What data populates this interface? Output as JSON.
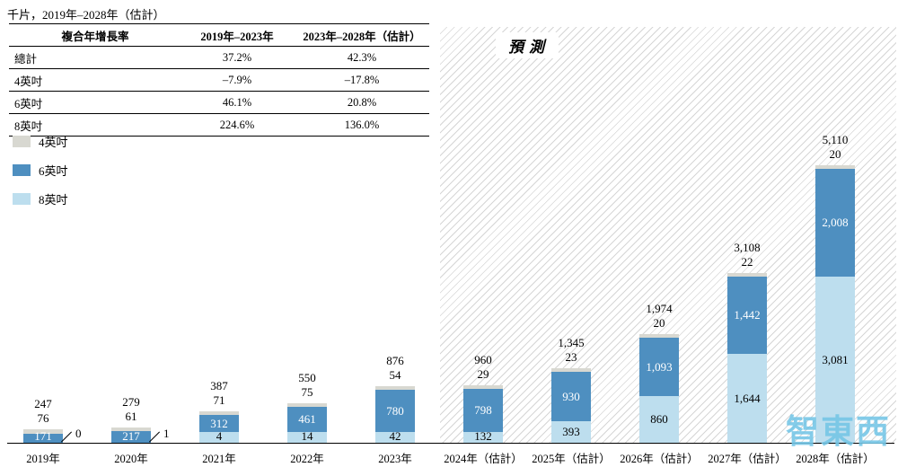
{
  "title": "千片，2019年–2028年（估計）",
  "forecast_label": "預測",
  "watermark": "智東西",
  "colors": {
    "size4": "#d8d8d1",
    "size6": "#4e8fc0",
    "size8": "#bddeee"
  },
  "cagr_table": {
    "header": [
      "複合年增長率",
      "2019年–2023年",
      "2023年–2028年（估計）"
    ],
    "rows": [
      {
        "label": "總計",
        "v1": "37.2%",
        "v2": "42.3%"
      },
      {
        "label": "4英吋",
        "v1": "–7.9%",
        "v2": "–17.8%"
      },
      {
        "label": "6英吋",
        "v1": "46.1%",
        "v2": "20.8%"
      },
      {
        "label": "8英吋",
        "v1": "224.6%",
        "v2": "136.0%"
      }
    ]
  },
  "legend": [
    {
      "label": "4英吋",
      "color_key": "size4"
    },
    {
      "label": "6英吋",
      "color_key": "size6"
    },
    {
      "label": "8英吋",
      "color_key": "size8"
    }
  ],
  "chart_data": {
    "type": "bar",
    "stacked": true,
    "unit": "千片",
    "title": "千片，2019年–2028年（估計）",
    "legend_position": "left",
    "y_axis_visible": false,
    "forecast_from_index": 5,
    "categories": [
      "2019年",
      "2020年",
      "2021年",
      "2022年",
      "2023年",
      "2024年（估計）",
      "2025年（估計）",
      "2026年（估計）",
      "2027年（估計）",
      "2028年（估計）"
    ],
    "series": [
      {
        "name": "4英吋",
        "values": [
          76,
          61,
          71,
          75,
          54,
          29,
          23,
          20,
          22,
          20
        ]
      },
      {
        "name": "6英吋",
        "values": [
          171,
          217,
          312,
          461,
          780,
          798,
          930,
          1093,
          1442,
          2008
        ]
      },
      {
        "name": "8英吋",
        "values": [
          0,
          1,
          4,
          14,
          42,
          132,
          393,
          860,
          1644,
          3081
        ]
      }
    ],
    "totals": [
      247,
      279,
      387,
      550,
      876,
      960,
      1345,
      1974,
      3108,
      5110
    ],
    "total_labels": [
      "247",
      "279",
      "387",
      "550",
      "876",
      "960",
      "1,345",
      "1,974",
      "3,108",
      "5,110"
    ]
  }
}
